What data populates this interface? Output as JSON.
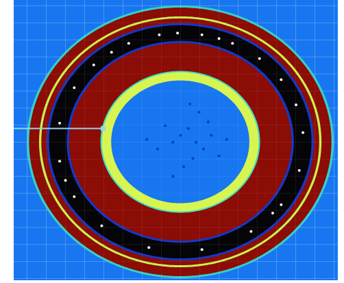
{
  "chart_data": {
    "type": "rings",
    "color": "#1776f0",
    "grid": true,
    "tick_labels": false,
    "xlim": [
      -1.085,
      1.022
    ],
    "ylim": [
      -1.01,
      1.04
    ],
    "xticks": [
      -1.0,
      -0.875,
      -0.75,
      -0.625,
      -0.5,
      -0.375,
      -0.25,
      -0.125,
      0,
      0.125,
      0.25,
      0.375,
      0.5,
      0.625,
      0.75,
      0.875,
      1.0
    ],
    "yticks": [
      -1.0,
      -0.875,
      -0.75,
      -0.625,
      -0.5,
      -0.375,
      -0.25,
      -0.125,
      0,
      0.125,
      0.25,
      0.375,
      0.5,
      0.625,
      0.75,
      0.875,
      1.0
    ],
    "bands": [
      {
        "r": 1.0,
        "color": "#35d0c8"
      },
      {
        "r": 0.985,
        "color": "#8c0c06"
      },
      {
        "r": 0.92,
        "color": "#c8f050"
      },
      {
        "r": 0.905,
        "color": "#8c0c06"
      },
      {
        "r": 0.87,
        "color": "#1438c8"
      },
      {
        "r": 0.855,
        "color": "#050508"
      },
      {
        "r": 0.74,
        "color": "#1438c8"
      },
      {
        "r": 0.725,
        "color": "#8c0c06"
      },
      {
        "r": 0.52,
        "color": "#40e0c0"
      },
      {
        "r": 0.51,
        "color": "#d7f550"
      },
      {
        "r": 0.45,
        "color": "#1776f0"
      }
    ],
    "series": [
      {
        "color": "#ffffff",
        "marker": "dot",
        "x": [
          -0.139,
          -0.338,
          0.139,
          0.338,
          0.514,
          0.655,
          0.752,
          0.797,
          0.773,
          0.655,
          0.459,
          0.139,
          -0.207,
          -0.514,
          -0.693,
          -0.788,
          -0.788,
          -0.693,
          -0.566,
          -0.02,
          0.25,
          -0.45,
          0.6,
          -0.75
        ],
        "y": [
          0.788,
          0.725,
          0.788,
          0.725,
          0.613,
          0.459,
          0.274,
          0.07,
          -0.207,
          -0.459,
          -0.655,
          -0.788,
          -0.773,
          -0.613,
          -0.4,
          -0.139,
          0.139,
          0.4,
          0.566,
          0.8,
          0.76,
          0.66,
          -0.52,
          -0.28
        ]
      },
      {
        "color": "#0a3cc8",
        "marker": "dot",
        "x": [
          0.0,
          0.05,
          -0.05,
          0.1,
          0.15,
          0.2,
          -0.15,
          0.08,
          0.02,
          -0.1,
          0.25,
          0.18,
          -0.22,
          0.12,
          -0.05,
          0.06,
          0.3
        ],
        "y": [
          0.05,
          0.1,
          0.0,
          0.0,
          -0.05,
          0.05,
          -0.05,
          -0.12,
          -0.18,
          0.12,
          -0.1,
          0.15,
          0.02,
          0.22,
          -0.25,
          0.28,
          0.02
        ]
      }
    ],
    "pointer": {
      "color": "#9ad4ec",
      "x": [
        -1.085,
        -0.505
      ],
      "y": [
        0.1,
        0.1
      ]
    }
  }
}
